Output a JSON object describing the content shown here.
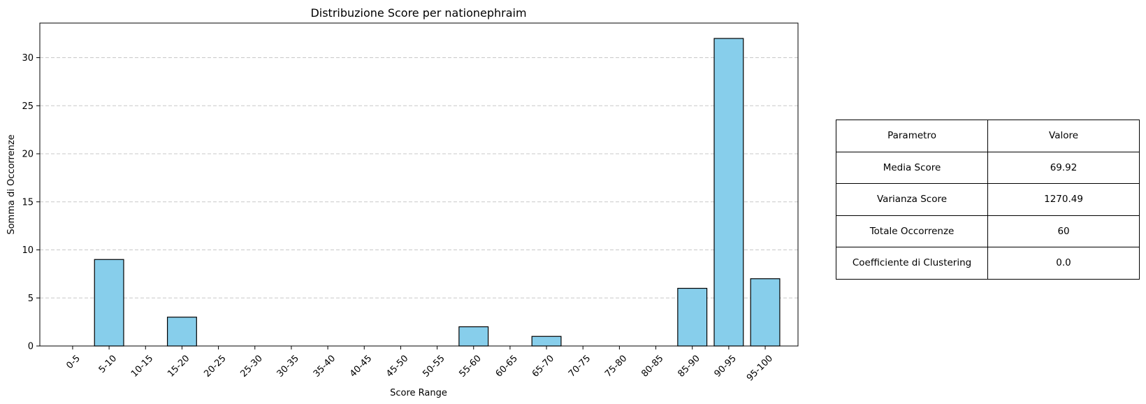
{
  "chart_data": {
    "type": "bar",
    "title": "Distribuzione Score per nationephraim",
    "xlabel": "Score Range",
    "ylabel": "Somma di Occorrenze",
    "categories": [
      "0-5",
      "5-10",
      "10-15",
      "15-20",
      "20-25",
      "25-30",
      "30-35",
      "35-40",
      "40-45",
      "45-50",
      "50-55",
      "55-60",
      "60-65",
      "65-70",
      "70-75",
      "75-80",
      "80-85",
      "85-90",
      "90-95",
      "95-100"
    ],
    "values": [
      0,
      9,
      0,
      3,
      0,
      0,
      0,
      0,
      0,
      0,
      0,
      2,
      0,
      1,
      0,
      0,
      0,
      6,
      32,
      7
    ],
    "ylim": [
      0,
      33.6
    ],
    "yticks": [
      0,
      5,
      10,
      15,
      20,
      25,
      30
    ],
    "grid": "y-dashed",
    "bar_color": "#87CEEB",
    "edge_color": "#000000",
    "xtick_rotation": 45
  },
  "table": {
    "header": {
      "param": "Parametro",
      "value": "Valore"
    },
    "rows": [
      {
        "param": "Media Score",
        "value": "69.92"
      },
      {
        "param": "Varianza Score",
        "value": "1270.49"
      },
      {
        "param": "Totale Occorrenze",
        "value": "60"
      },
      {
        "param": "Coefficiente di Clustering",
        "value": "0.0"
      }
    ]
  }
}
